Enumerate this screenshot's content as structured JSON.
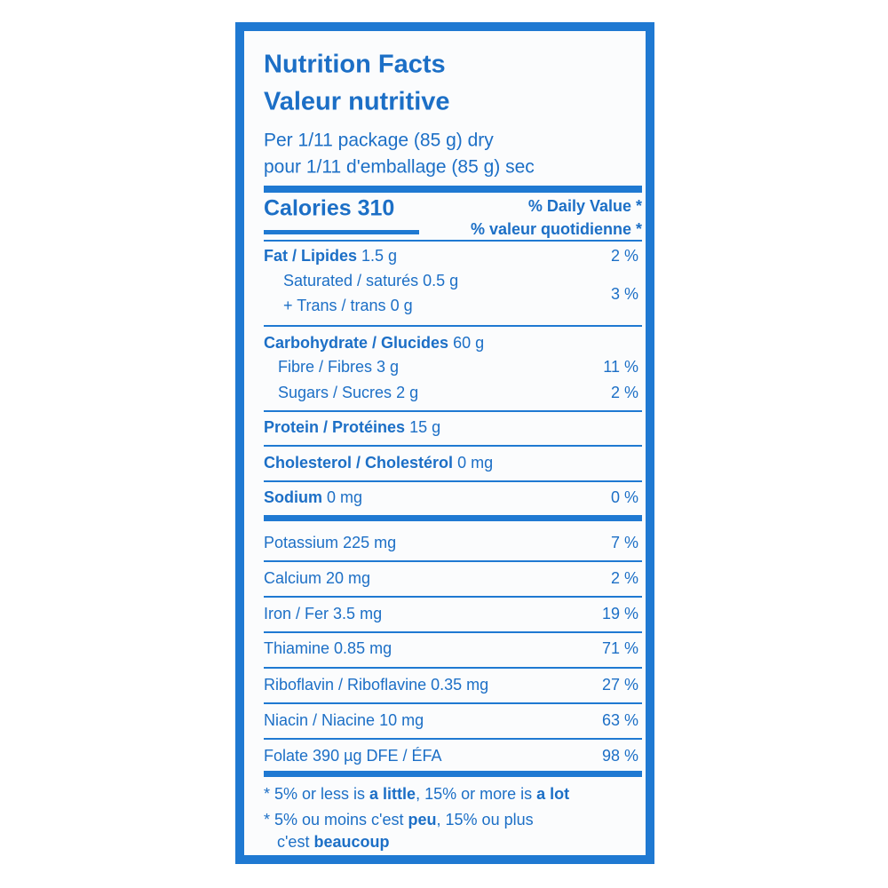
{
  "header": {
    "title": "Nutrition Facts",
    "title_fr": "Valeur nutritive",
    "serving": "Per 1/11 package (85 g) dry",
    "serving_fr": "pour 1/11 d'emballage (85 g) sec"
  },
  "calories": {
    "label": "Calories 310",
    "dv_header": "% Daily Value *",
    "dv_header_fr": "% valeur quotidienne *"
  },
  "rows": [
    {
      "name": "Fat / Lipides",
      "amount": "1.5 g",
      "dv": "2 %"
    },
    {
      "name": "Saturated / saturés",
      "amount": "0.5 g"
    },
    {
      "name": "+ Trans / trans",
      "amount": "0 g",
      "dv": "3 %"
    },
    {
      "name": "Carbohydrate / Glucides",
      "amount": "60 g"
    },
    {
      "name": "Fibre / Fibres",
      "amount": "3 g",
      "dv": "11 %"
    },
    {
      "name": "Sugars / Sucres",
      "amount": "2 g",
      "dv": "2 %"
    },
    {
      "name": "Protein / Protéines",
      "amount": "15 g"
    },
    {
      "name": "Cholesterol / Cholestérol",
      "amount": "0 mg"
    },
    {
      "name": "Sodium",
      "amount": "0 mg",
      "dv": "0 %"
    },
    {
      "name": "Potassium",
      "amount": "225 mg",
      "dv": "7 %"
    },
    {
      "name": "Calcium",
      "amount": "20 mg",
      "dv": "2 %"
    },
    {
      "name": "Iron / Fer",
      "amount": "3.5 mg",
      "dv": "19 %"
    },
    {
      "name": "Thiamine",
      "amount": "0.85 mg",
      "dv": "71 %"
    },
    {
      "name": "Riboflavin / Riboflavine",
      "amount": "0.35 mg",
      "dv": "27 %"
    },
    {
      "name": "Niacin / Niacine",
      "amount": "10 mg",
      "dv": "63 %"
    },
    {
      "name": "Folate",
      "amount": "390 µg DFE / ÉFA",
      "dv": "98 %"
    }
  ],
  "footnote": {
    "en": [
      "* 5% or less is ",
      "a little",
      ", 15% or more is ",
      "a lot"
    ],
    "fr": [
      "* 5% ou moins c'est ",
      "peu",
      ", 15% ou plus"
    ],
    "fr2": [
      "c'est ",
      "beaucoup"
    ]
  }
}
